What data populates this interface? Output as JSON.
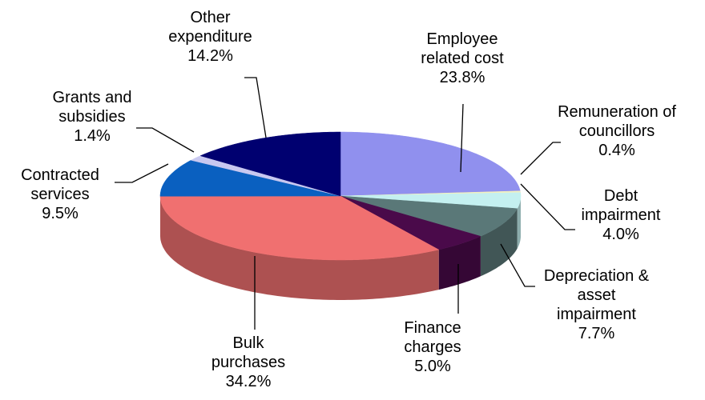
{
  "chart_data": {
    "type": "pie",
    "categories": [
      "Employee related cost",
      "Remuneration of councillors",
      "Debt impairment",
      "Depreciation & asset impairment",
      "Finance charges",
      "Bulk purchases",
      "Contracted services",
      "Grants and subsidies",
      "Other expenditure"
    ],
    "values": [
      23.8,
      0.4,
      4.0,
      7.7,
      5.0,
      34.2,
      9.5,
      1.4,
      14.2
    ],
    "value_labels": [
      "23.8%",
      "0.4%",
      "4.0%",
      "7.7%",
      "5.0%",
      "34.2%",
      "9.5%",
      "1.4%",
      "14.2%"
    ],
    "colors": [
      "#9090ee",
      "#f2f0c0",
      "#c4f0f0",
      "#5a7878",
      "#4a0a4a",
      "#f07070",
      "#0a60c0",
      "#c8c8f0",
      "#000070"
    ]
  }
}
